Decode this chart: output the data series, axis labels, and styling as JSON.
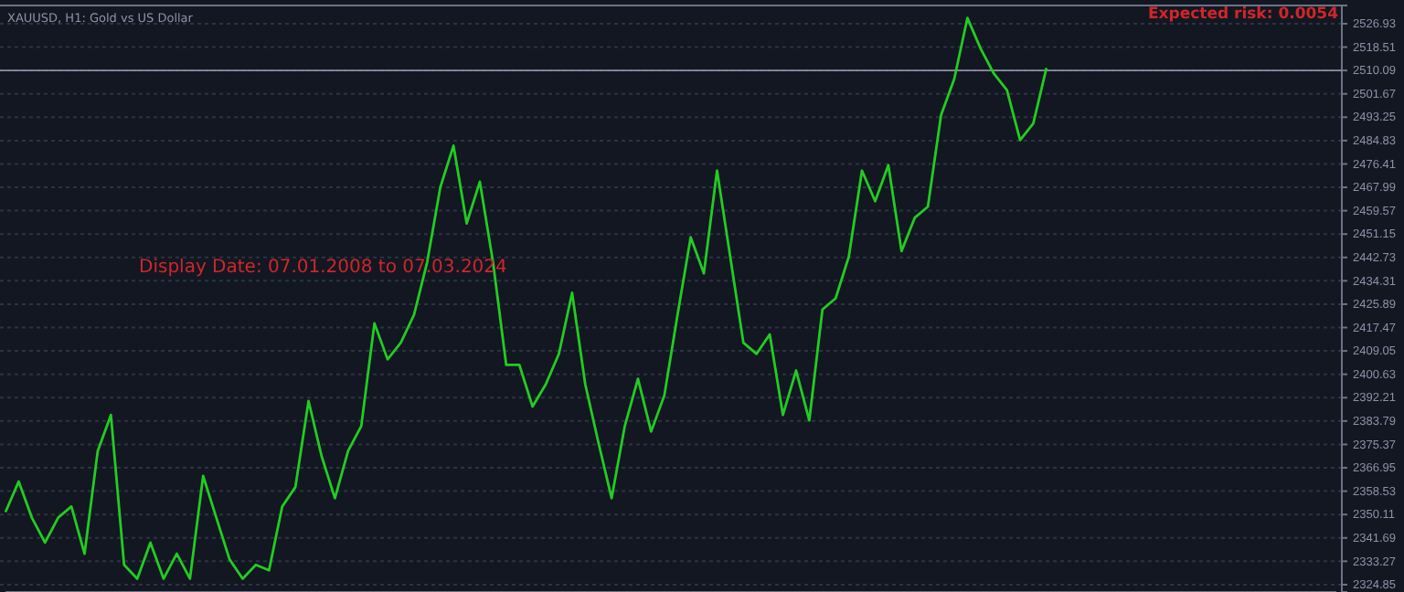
{
  "chart_data": {
    "type": "line",
    "title": "XAUUSD, H1:  Gold vs US Dollar",
    "annotations": [
      "Display Date: 07.01.2008 to 07.03.2024",
      "Expected risk: 0.0054"
    ],
    "categories": [
      null,
      null,
      null,
      null,
      null,
      null,
      null,
      null,
      null,
      null,
      null,
      null,
      null,
      null,
      null,
      null,
      null,
      null,
      null,
      null,
      null,
      null,
      null,
      null,
      null,
      null,
      null,
      null,
      null,
      null,
      null,
      null,
      null,
      null,
      null,
      null,
      null,
      null,
      null,
      null,
      null,
      null,
      null,
      null,
      null,
      null,
      null,
      null,
      null,
      null,
      null,
      null,
      null,
      null,
      null,
      null,
      null,
      null,
      null,
      null,
      null,
      null,
      null,
      null,
      null,
      null,
      null,
      null,
      null,
      null,
      null,
      null,
      null,
      null,
      null,
      null,
      null,
      null,
      null,
      null,
      null,
      null,
      null,
      null,
      null,
      null,
      null,
      null,
      null,
      null,
      null,
      null,
      null,
      null,
      null,
      null,
      null,
      null,
      null,
      null,
      null,
      null
    ],
    "series": [
      {
        "color": "#22cc22",
        "values": [
          2351,
          2362,
          2349,
          2340,
          2349,
          2353,
          2336,
          2373,
          2386,
          2332,
          2327,
          2340,
          2327,
          2336,
          2327,
          2364,
          2349,
          2334,
          2327,
          2332,
          2330,
          2353,
          2360,
          2391,
          2371,
          2356,
          2373,
          2382,
          2419,
          2406,
          2412,
          2422,
          2441,
          2468,
          2483,
          2455,
          2470,
          2441,
          2404,
          2404,
          2389,
          2397,
          2408,
          2430,
          2397,
          2376,
          2356,
          2382,
          2399,
          2380,
          2393,
          2422,
          2450,
          2437,
          2474,
          2443,
          2412,
          2408,
          2415,
          2386,
          2402,
          2384,
          2424,
          2428,
          2443,
          2474,
          2463,
          2476,
          2445,
          2457,
          2461,
          2494,
          2507,
          2529,
          2518,
          2509,
          2503,
          2485,
          2491,
          2511,
          null,
          null,
          null,
          null,
          null,
          null,
          null,
          null,
          null,
          null,
          null,
          null,
          null,
          null,
          null,
          null,
          null,
          null,
          null,
          null,
          null,
          null
        ]
      }
    ],
    "ylim": [
      2322.2,
      2533.5
    ],
    "yticks": [
      2324.85,
      2333.27,
      2341.69,
      2350.11,
      2358.53,
      2366.95,
      2375.37,
      2383.79,
      2392.21,
      2400.63,
      2409.05,
      2417.47,
      2425.89,
      2434.31,
      2442.73,
      2451.15,
      2459.57,
      2467.99,
      2476.41,
      2484.83,
      2493.25,
      2501.67,
      2510.09,
      2518.51,
      2526.93
    ],
    "ref_lines": [
      {
        "axis": "y",
        "value": 2510.09,
        "color": "#8a93a6"
      }
    ],
    "grid": "y",
    "tick_labels": "y",
    "line_style": "solid",
    "marker": "none"
  }
}
